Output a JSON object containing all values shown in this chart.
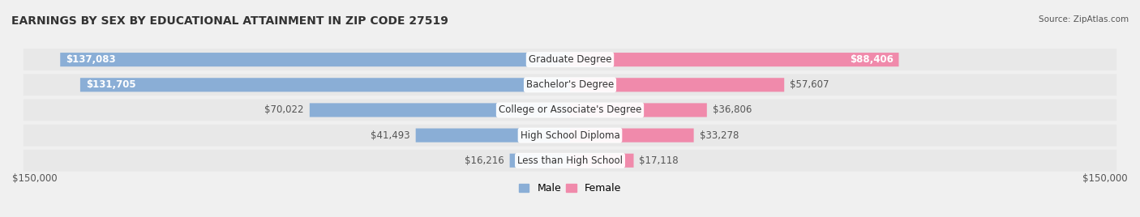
{
  "title": "EARNINGS BY SEX BY EDUCATIONAL ATTAINMENT IN ZIP CODE 27519",
  "source": "Source: ZipAtlas.com",
  "categories": [
    "Less than High School",
    "High School Diploma",
    "College or Associate's Degree",
    "Bachelor's Degree",
    "Graduate Degree"
  ],
  "male_values": [
    16216,
    41493,
    70022,
    131705,
    137083
  ],
  "female_values": [
    17118,
    33278,
    36806,
    57607,
    88406
  ],
  "max_val": 150000,
  "male_color": "#8aaed6",
  "female_color": "#f08aab",
  "bg_color": "#f0f0f0",
  "row_bg_color": "#e8e8e8",
  "label_bg_color": "#ffffff",
  "title_fontsize": 10,
  "bar_label_fontsize": 8.5,
  "cat_label_fontsize": 8.5,
  "axis_label_fontsize": 8.5,
  "legend_fontsize": 9
}
